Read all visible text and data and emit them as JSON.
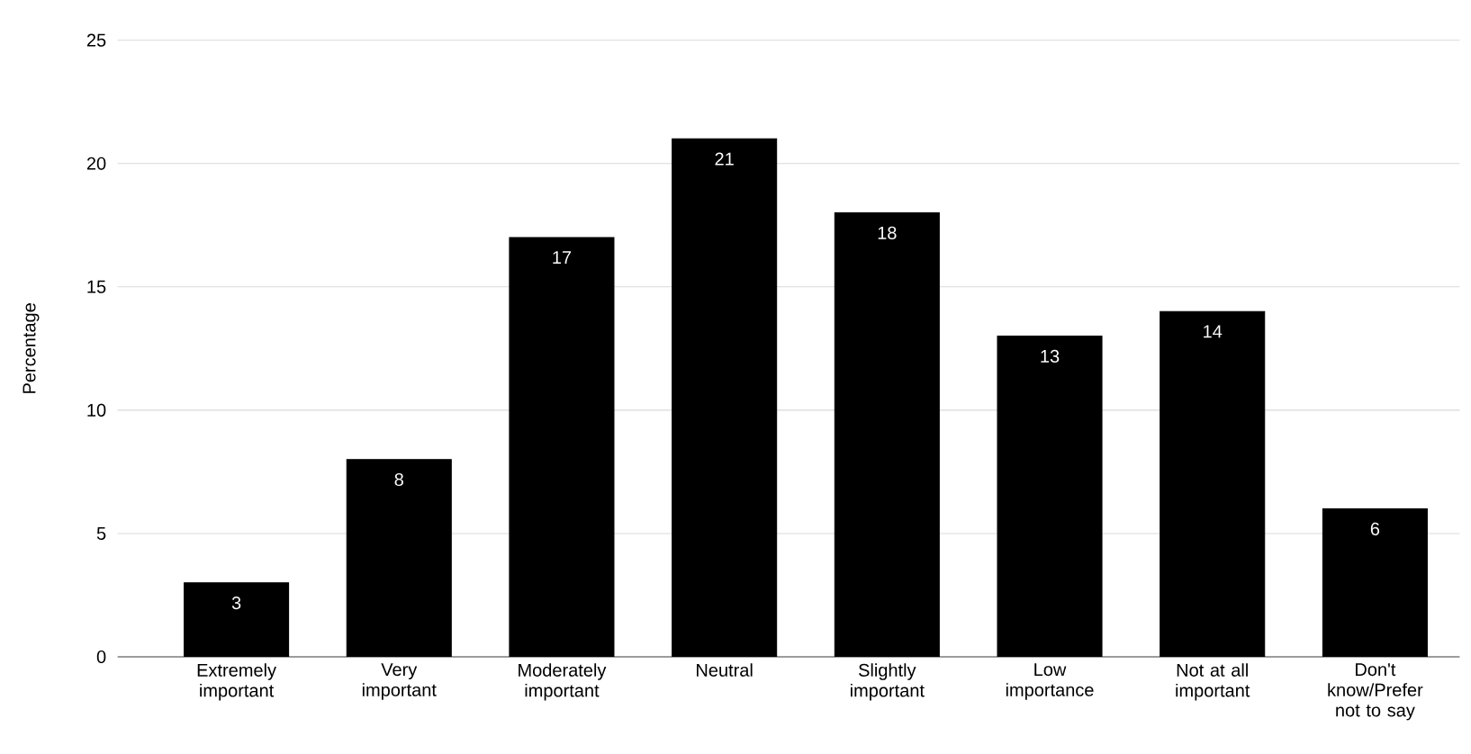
{
  "chart_data": {
    "type": "bar",
    "ylabel": "Percentage",
    "categories": [
      "Extremely important",
      "Very important",
      "Moderately important",
      "Neutral",
      "Slightly important",
      "Low importance",
      "Not at all important",
      "Don't know/Prefer not to say"
    ],
    "values": [
      3,
      8,
      17,
      21,
      18,
      13,
      14,
      6
    ],
    "color": "#000000",
    "ylim": [
      0,
      25
    ],
    "yticks": [
      0,
      5,
      10,
      15,
      20,
      25
    ],
    "grid": "y",
    "data_labels": true
  }
}
